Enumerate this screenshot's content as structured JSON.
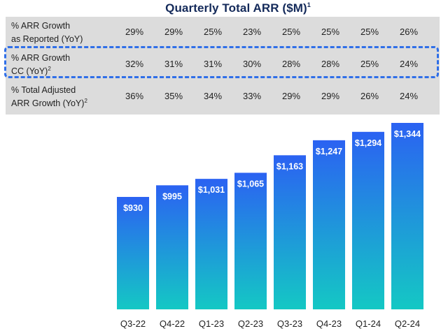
{
  "title": "Quarterly Total ARR ($M)",
  "title_footnote": "1",
  "table": {
    "rows": [
      {
        "label": "% ARR Growth\nas Reported (YoY)",
        "footnote": "",
        "values": [
          "29%",
          "29%",
          "25%",
          "23%",
          "25%",
          "25%",
          "25%",
          "26%"
        ]
      },
      {
        "label": "% ARR Growth\nCC (YoY)",
        "footnote": "2",
        "values": [
          "32%",
          "31%",
          "31%",
          "30%",
          "28%",
          "28%",
          "25%",
          "24%"
        ]
      },
      {
        "label": "% Total Adjusted\nARR Growth (YoY)",
        "footnote": "2",
        "values": [
          "36%",
          "35%",
          "34%",
          "33%",
          "29%",
          "29%",
          "26%",
          "24%"
        ]
      }
    ],
    "highlighted_row": 1
  },
  "chart_data": {
    "type": "bar",
    "title": "Quarterly Total ARR ($M)",
    "categories": [
      "Q3-22",
      "Q4-22",
      "Q1-23",
      "Q2-23",
      "Q3-23",
      "Q4-23",
      "Q1-24",
      "Q2-24"
    ],
    "values": [
      930,
      995,
      1031,
      1065,
      1163,
      1247,
      1294,
      1344
    ],
    "data_labels": [
      "$930",
      "$995",
      "$1,031",
      "$1,065",
      "$1,163",
      "$1,247",
      "$1,294",
      "$1,344"
    ],
    "xlabel": "",
    "ylabel": "",
    "grid": false,
    "gradient_colors": [
      "#2b62f2",
      "#14c8c4"
    ]
  }
}
